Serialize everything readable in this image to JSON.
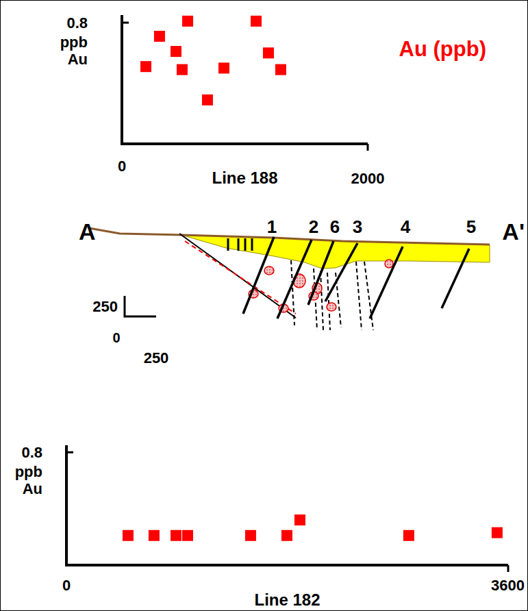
{
  "chart_data": [
    {
      "type": "scatter",
      "title": "Au (ppb)",
      "x_label": "Line 188",
      "y_label": "ppb Au",
      "x": [
        195,
        306,
        440,
        535,
        490,
        830,
        696,
        1092,
        1192,
        1292
      ],
      "values": [
        0.51,
        0.71,
        0.61,
        0.81,
        0.49,
        0.5,
        0.29,
        0.81,
        0.6,
        0.49
      ],
      "color": "#ff0000",
      "marker": "square",
      "xlim": [
        0,
        2000
      ],
      "xticks": [
        0,
        2000
      ],
      "ylim": [
        0,
        0.85
      ],
      "yticks": [
        0.8
      ]
    },
    {
      "type": "scatter",
      "x_label": "Line 182",
      "y_label": "ppb Au",
      "x": [
        502,
        714,
        893,
        988,
        1501,
        1797,
        1903,
        2790,
        3510
      ],
      "values": [
        0.21,
        0.21,
        0.21,
        0.21,
        0.21,
        0.21,
        0.32,
        0.21,
        0.23
      ],
      "color": "#ff0000",
      "marker": "square",
      "xlim": [
        0,
        3600
      ],
      "xticks": [
        0,
        3600
      ],
      "ylim": [
        0,
        0.85
      ],
      "yticks": [
        0.8
      ]
    }
  ],
  "cross_section": {
    "labels": {
      "start": "A",
      "end": "A'"
    },
    "faults": [
      "1",
      "2",
      "6",
      "3",
      "4",
      "5"
    ],
    "scale": {
      "vertical": "250",
      "origin": "0",
      "horizontal": "250"
    }
  }
}
